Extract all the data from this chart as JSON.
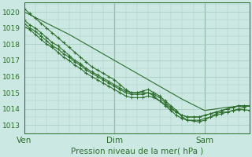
{
  "xlabel": "Pression niveau de la mer( hPa )",
  "bg_color": "#cce8e2",
  "grid_color": "#aacfc4",
  "line_color": "#2d6e2d",
  "text_color": "#2d6e2d",
  "spine_color": "#2d6e2d",
  "ylim": [
    1012.5,
    1020.6
  ],
  "xlim": [
    0,
    120
  ],
  "yticks": [
    1013,
    1014,
    1015,
    1016,
    1017,
    1018,
    1019,
    1020
  ],
  "xtick_positions": [
    0,
    48,
    96
  ],
  "xtick_labels": [
    "Ven",
    "Dim",
    "Sam"
  ],
  "vline_positions": [
    0,
    48,
    96
  ],
  "lines": [
    {
      "x": [
        0,
        3,
        6,
        9,
        12,
        15,
        18,
        21,
        24,
        27,
        30,
        33,
        36,
        39,
        42,
        45,
        48,
        51,
        54,
        57,
        60,
        63,
        66,
        69,
        72,
        75,
        78,
        81,
        84,
        87,
        90,
        93,
        96,
        99,
        102,
        105,
        108,
        111,
        114,
        117,
        120
      ],
      "y": [
        1020.2,
        1019.9,
        1019.6,
        1019.3,
        1019.0,
        1018.7,
        1018.4,
        1018.1,
        1017.8,
        1017.5,
        1017.2,
        1016.9,
        1016.6,
        1016.4,
        1016.2,
        1016.0,
        1015.8,
        1015.5,
        1015.2,
        1015.0,
        1015.0,
        1015.1,
        1015.2,
        1015.0,
        1014.8,
        1014.5,
        1014.2,
        1013.9,
        1013.5,
        1013.3,
        1013.25,
        1013.2,
        1013.3,
        1013.5,
        1013.7,
        1013.8,
        1013.8,
        1013.9,
        1014.0,
        1014.1,
        1014.2
      ],
      "marker": "+"
    },
    {
      "x": [
        0,
        3,
        6,
        9,
        12,
        15,
        18,
        21,
        24,
        27,
        30,
        33,
        36,
        39,
        42,
        45,
        48,
        51,
        54,
        57,
        60,
        63,
        66,
        69,
        72,
        75,
        78,
        81,
        84,
        87,
        90,
        93,
        96,
        99,
        102,
        105,
        108,
        111,
        114,
        117,
        120
      ],
      "y": [
        1019.5,
        1019.2,
        1019.0,
        1018.7,
        1018.4,
        1018.1,
        1017.9,
        1017.6,
        1017.3,
        1017.0,
        1016.8,
        1016.5,
        1016.3,
        1016.1,
        1015.9,
        1015.7,
        1015.5,
        1015.3,
        1015.1,
        1015.0,
        1015.0,
        1015.0,
        1015.0,
        1014.8,
        1014.5,
        1014.2,
        1013.9,
        1013.6,
        1013.4,
        1013.3,
        1013.3,
        1013.3,
        1013.4,
        1013.5,
        1013.6,
        1013.7,
        1013.8,
        1013.9,
        1013.95,
        1013.95,
        1013.9
      ],
      "marker": "+"
    },
    {
      "x": [
        0,
        3,
        6,
        9,
        12,
        15,
        18,
        21,
        24,
        27,
        30,
        33,
        36,
        39,
        42,
        45,
        48,
        51,
        54,
        57,
        60,
        63,
        66,
        69,
        72,
        75,
        78,
        81,
        84,
        87,
        90,
        93,
        96,
        99,
        102,
        105,
        108,
        111,
        114,
        117,
        120
      ],
      "y": [
        1019.3,
        1019.0,
        1018.8,
        1018.5,
        1018.2,
        1017.9,
        1017.7,
        1017.4,
        1017.2,
        1016.9,
        1016.7,
        1016.4,
        1016.2,
        1016.0,
        1015.8,
        1015.6,
        1015.4,
        1015.2,
        1015.0,
        1014.9,
        1014.9,
        1014.9,
        1015.0,
        1014.9,
        1014.7,
        1014.4,
        1014.1,
        1013.8,
        1013.6,
        1013.5,
        1013.5,
        1013.5,
        1013.6,
        1013.7,
        1013.8,
        1013.9,
        1014.0,
        1014.1,
        1014.2,
        1014.2,
        1014.2
      ],
      "marker": "+"
    },
    {
      "x": [
        0,
        3,
        6,
        9,
        12,
        15,
        18,
        21,
        24,
        27,
        30,
        33,
        36,
        39,
        42,
        45,
        48,
        51,
        54,
        57,
        60,
        63,
        66,
        69,
        72,
        75,
        78,
        81,
        84,
        87,
        90,
        93,
        96,
        99,
        102,
        105,
        108,
        111,
        114,
        117,
        120
      ],
      "y": [
        1019.1,
        1018.9,
        1018.6,
        1018.3,
        1018.0,
        1017.8,
        1017.5,
        1017.2,
        1017.0,
        1016.7,
        1016.5,
        1016.2,
        1016.0,
        1015.8,
        1015.6,
        1015.4,
        1015.2,
        1015.0,
        1014.8,
        1014.7,
        1014.7,
        1014.7,
        1014.8,
        1014.7,
        1014.5,
        1014.3,
        1014.0,
        1013.8,
        1013.6,
        1013.5,
        1013.5,
        1013.5,
        1013.6,
        1013.7,
        1013.8,
        1013.9,
        1014.0,
        1014.1,
        1014.2,
        1014.2,
        1014.2
      ],
      "marker": "+"
    },
    {
      "x": [
        0,
        12,
        24,
        36,
        48,
        60,
        72,
        84,
        96,
        108,
        120
      ],
      "y": [
        1020.0,
        1019.3,
        1018.6,
        1017.8,
        1017.0,
        1016.2,
        1015.4,
        1014.6,
        1013.9,
        1014.1,
        1014.2
      ],
      "marker": null
    }
  ]
}
